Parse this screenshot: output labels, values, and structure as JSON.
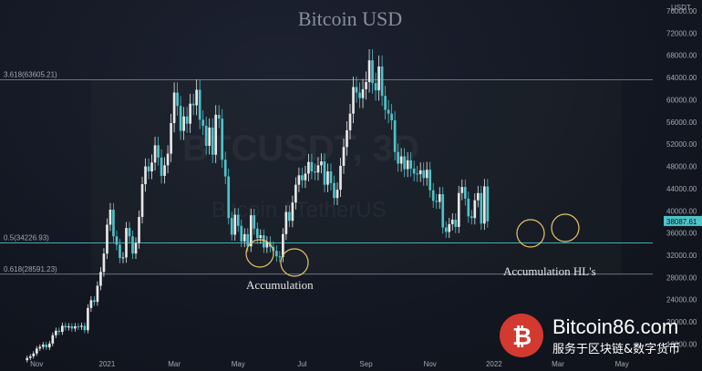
{
  "chart_data": {
    "type": "candlestick",
    "title": "Bitcoin USD",
    "watermark": "BTCUSDT, 3D",
    "watermark_sub": "Bitcoin / TetherUS",
    "y_unit_label": "USDT",
    "ylim": [
      13000,
      74000
    ],
    "y_ticks": [
      16000,
      20000,
      24000,
      28000,
      32000,
      36000,
      40000,
      44000,
      48000,
      52000,
      56000,
      60000,
      64000,
      68000,
      72000,
      76000
    ],
    "y_tick_labels": [
      "16000.00",
      "20000.00",
      "24000.00",
      "28000.00",
      "32000.00",
      "36000.00",
      "40000.00",
      "44000.00",
      "48000.00",
      "52000.00",
      "56000.00",
      "60000.00",
      "64000.00",
      "68000.00",
      "72000.00",
      "76000.00"
    ],
    "x_tick_labels": [
      "Nov",
      "2021",
      "Mar",
      "May",
      "Jul",
      "Sep",
      "Nov",
      "2022",
      "Mar",
      "May"
    ],
    "x_tick_index": [
      3,
      25,
      46,
      66,
      86,
      106,
      126,
      146,
      166,
      186
    ],
    "n_slots": 199,
    "last_price": 38087.61,
    "last_price_label": "38087.61",
    "fib_levels": [
      {
        "label": "3.618(63605.21)",
        "value": 63605.21
      },
      {
        "label": "0.5(34226.93)",
        "value": 34226.93
      },
      {
        "label": "0.618(28591.23)",
        "value": 28591.23
      }
    ],
    "annotations": [
      "Accumulation",
      "Accumulation HL's"
    ],
    "up_color": "#e8e8e8",
    "down_color": "#4ec3c9",
    "closes": [
      13500,
      13800,
      14300,
      15200,
      15500,
      15900,
      15400,
      16100,
      17600,
      18400,
      18200,
      19300,
      19000,
      19200,
      18800,
      19200,
      19100,
      19300,
      18500,
      22500,
      23900,
      23600,
      26500,
      29000,
      32300,
      37500,
      40200,
      35400,
      33900,
      31500,
      31600,
      36900,
      35400,
      32300,
      34200,
      38900,
      44800,
      48000,
      47100,
      48700,
      51800,
      49600,
      46300,
      48200,
      50300,
      55800,
      61300,
      58900,
      54400,
      57000,
      55700,
      59300,
      59000,
      61800,
      56400,
      55300,
      51700,
      55000,
      50100,
      57300,
      56600,
      49200,
      46200,
      38700,
      35700,
      39300,
      37300,
      34500,
      35800,
      33600,
      39200,
      36800,
      35100,
      35600,
      33400,
      34400,
      33500,
      32800,
      31800,
      31700,
      35800,
      39800,
      38200,
      41500,
      44700,
      46400,
      45500,
      46700,
      48800,
      47100,
      46900,
      48200,
      48900,
      44700,
      47100,
      45000,
      42300,
      43800,
      48100,
      51500,
      54500,
      57500,
      62300,
      61300,
      60300,
      61900,
      63200,
      67100,
      63000,
      61700,
      66000,
      60700,
      58200,
      57500,
      56300,
      50600,
      48500,
      49800,
      47500,
      49100,
      47600,
      46700,
      46600,
      47300,
      45900,
      47400,
      43700,
      41800,
      41600,
      43000,
      37000,
      36200,
      37600,
      38400,
      37100,
      43200,
      44300,
      42200,
      39000,
      38700,
      41900,
      43200,
      37700,
      44400,
      38087
    ],
    "month_offset_note": ""
  }
}
